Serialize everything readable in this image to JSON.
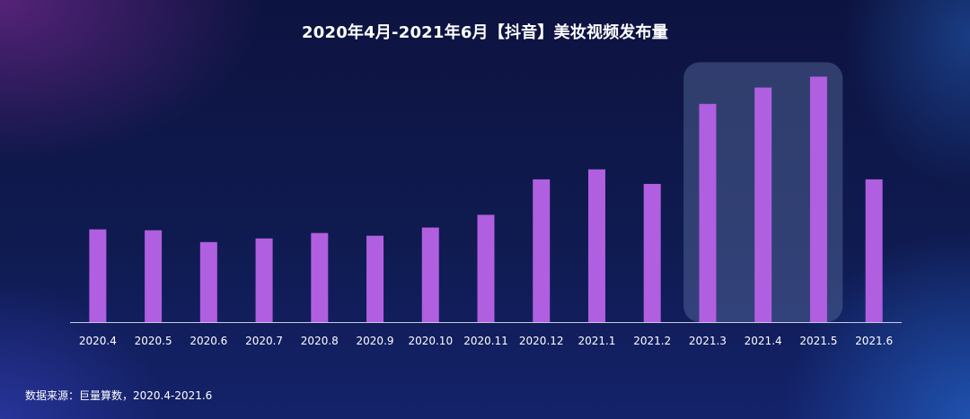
{
  "chart_data": {
    "type": "bar",
    "title": "2020年4月-2021年6月【抖音】美妆视频发布量",
    "xlabel": "",
    "ylabel": "",
    "categories": [
      "2020.4",
      "2020.5",
      "2020.6",
      "2020.7",
      "2020.8",
      "2020.9",
      "2020.10",
      "2020.11",
      "2020.12",
      "2021.1",
      "2021.2",
      "2021.3",
      "2021.4",
      "2021.5",
      "2021.6"
    ],
    "values": [
      102,
      101,
      88,
      92,
      98,
      95,
      104,
      118,
      157,
      168,
      152,
      240,
      258,
      270,
      157
    ],
    "ylim": [
      0,
      300
    ],
    "bar_color": "#b05fe0",
    "highlight": {
      "categories": [
        "2021.3",
        "2021.4",
        "2021.5"
      ],
      "color": "#5a6fa0"
    },
    "axis_color": "#c8cce0",
    "grid": false,
    "legend": "none"
  },
  "footer": {
    "source": "数据来源：巨量算数，2020.4-2021.6"
  }
}
